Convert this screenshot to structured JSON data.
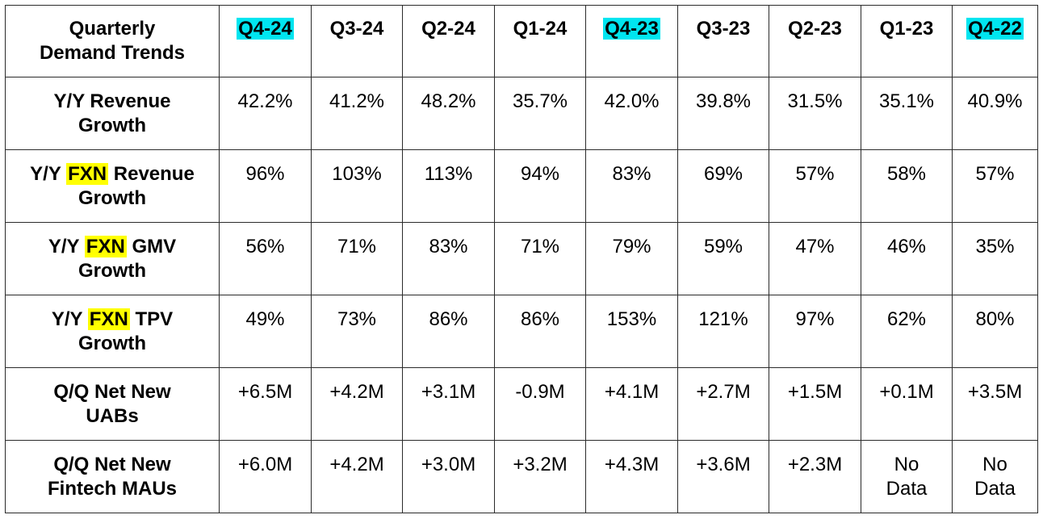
{
  "table": {
    "corner_label_line1": "Quarterly",
    "corner_label_line2": "Demand Trends",
    "columns": [
      "Q4-24",
      "Q3-24",
      "Q2-24",
      "Q1-24",
      "Q4-23",
      "Q3-23",
      "Q2-23",
      "Q1-23",
      "Q4-22"
    ],
    "highlighted_columns": [
      "Q4-24",
      "Q4-23",
      "Q4-22"
    ],
    "rows": [
      {
        "label_pre": "Y/Y Revenue",
        "label_highlight": "",
        "label_post": "",
        "label_line2": "Growth",
        "values": [
          "42.2%",
          "41.2%",
          "48.2%",
          "35.7%",
          "42.0%",
          "39.8%",
          "31.5%",
          "35.1%",
          "40.9%"
        ]
      },
      {
        "label_pre": "Y/Y",
        "label_highlight": "FXN",
        "label_post": "Revenue",
        "label_line2": "Growth",
        "values": [
          "96%",
          "103%",
          "113%",
          "94%",
          "83%",
          "69%",
          "57%",
          "58%",
          "57%"
        ]
      },
      {
        "label_pre": "Y/Y",
        "label_highlight": "FXN",
        "label_post": "GMV",
        "label_line2": "Growth",
        "values": [
          "56%",
          "71%",
          "83%",
          "71%",
          "79%",
          "59%",
          "47%",
          "46%",
          "35%"
        ]
      },
      {
        "label_pre": "Y/Y",
        "label_highlight": "FXN",
        "label_post": "TPV",
        "label_line2": "Growth",
        "values": [
          "49%",
          "73%",
          "86%",
          "86%",
          "153%",
          "121%",
          "97%",
          "62%",
          "80%"
        ]
      },
      {
        "label_pre": "Q/Q Net New",
        "label_highlight": "",
        "label_post": "",
        "label_line2": "UABs",
        "values": [
          "+6.5M",
          "+4.2M",
          "+3.1M",
          "-0.9M",
          "+4.1M",
          "+2.7M",
          "+1.5M",
          "+0.1M",
          "+3.5M"
        ]
      },
      {
        "label_pre": "Q/Q Net New",
        "label_highlight": "",
        "label_post": "",
        "label_line2": "Fintech MAUs",
        "values": [
          "+6.0M",
          "+4.2M",
          "+3.0M",
          "+3.2M",
          "+4.3M",
          "+3.6M",
          "+2.3M",
          "No Data",
          "No Data"
        ]
      }
    ]
  },
  "colors": {
    "cyan_highlight": "#00e5f0",
    "yellow_highlight": "#ffff00",
    "border": "#2b2b2b"
  }
}
